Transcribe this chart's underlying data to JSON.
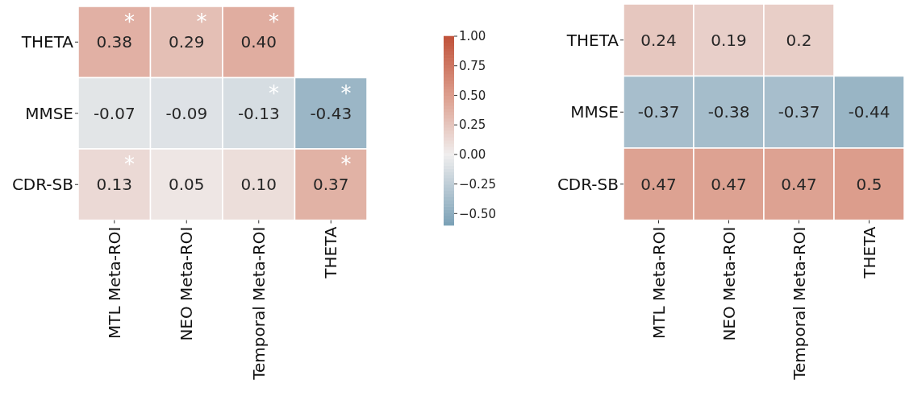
{
  "chart_data": [
    {
      "type": "heatmap",
      "categories": [
        "MTL Meta-ROI",
        "NEO Meta-ROI",
        "Temporal Meta-ROI",
        "THETA"
      ],
      "y_categories": [
        "THETA",
        "MMSE",
        "CDR-SB"
      ],
      "cells": [
        [
          0.38,
          0.29,
          0.4,
          null
        ],
        [
          -0.07,
          -0.09,
          -0.13,
          -0.43
        ],
        [
          0.13,
          0.05,
          0.1,
          0.37
        ]
      ],
      "cell_labels": [
        [
          "0.38",
          "0.29",
          "0.40",
          null
        ],
        [
          "-0.07",
          "-0.09",
          "-0.13",
          "-0.43"
        ],
        [
          "0.13",
          "0.05",
          "0.10",
          "0.37"
        ]
      ],
      "clim": [
        -0.6,
        1.0
      ],
      "cticks": [
        {
          "value": 1.0,
          "label": "1.00"
        },
        {
          "value": 0.75,
          "label": "0.75"
        },
        {
          "value": 0.5,
          "label": "0.50"
        },
        {
          "value": 0.25,
          "label": "0.25"
        },
        {
          "value": 0.0,
          "label": "0.00"
        },
        {
          "value": -0.25,
          "label": "−0.25"
        },
        {
          "value": -0.5,
          "label": "−0.50"
        }
      ],
      "annotations": [
        "*",
        "*",
        "*",
        "*",
        "*",
        "*",
        "*"
      ]
    },
    {
      "type": "heatmap",
      "categories": [
        "MTL Meta-ROI",
        "NEO Meta-ROI",
        "Temporal Meta-ROI",
        "THETA"
      ],
      "y_categories": [
        "THETA",
        "MMSE",
        "CDR-SB"
      ],
      "cells": [
        [
          0.24,
          0.19,
          0.2,
          null
        ],
        [
          -0.37,
          -0.38,
          -0.37,
          -0.44
        ],
        [
          0.47,
          0.47,
          0.47,
          0.5
        ]
      ],
      "data_labels": true
    }
  ]
}
